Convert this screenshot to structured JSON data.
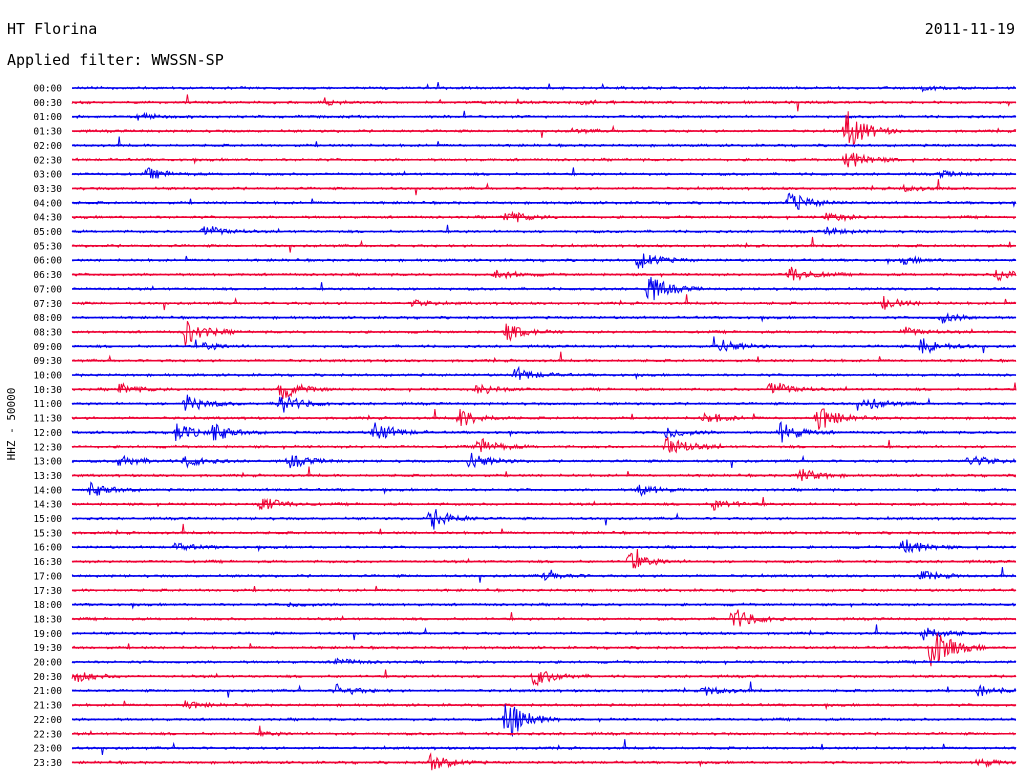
{
  "header": {
    "station": "HT Florina",
    "date": "2011-11-19",
    "filter": "Applied filter: WWSSN-SP"
  },
  "chart_data": {
    "type": "line",
    "title": "HT Florina",
    "ylabel": "HHZ - 50000",
    "row_labels": [
      "00:00",
      "00:30",
      "01:00",
      "01:30",
      "02:00",
      "02:30",
      "03:00",
      "03:30",
      "04:00",
      "04:30",
      "05:00",
      "05:30",
      "06:00",
      "06:30",
      "07:00",
      "07:30",
      "08:00",
      "08:30",
      "09:00",
      "09:30",
      "10:00",
      "10:30",
      "11:00",
      "11:30",
      "12:00",
      "12:30",
      "13:00",
      "13:30",
      "14:00",
      "14:30",
      "15:00",
      "15:30",
      "16:00",
      "16:30",
      "17:00",
      "17:30",
      "18:00",
      "18:30",
      "19:00",
      "19:30",
      "20:00",
      "20:30",
      "21:00",
      "21:30",
      "22:00",
      "22:30",
      "23:00",
      "23:30"
    ],
    "trace_colors": [
      "#0000ee",
      "#ee0033"
    ],
    "events": [
      {
        "row": 0,
        "t": 0.9,
        "amp": 0.4
      },
      {
        "row": 1,
        "t": 0.27,
        "amp": 0.3
      },
      {
        "row": 1,
        "t": 0.54,
        "amp": 0.3
      },
      {
        "row": 2,
        "t": 0.07,
        "amp": 0.5
      },
      {
        "row": 3,
        "t": 0.53,
        "amp": 0.3
      },
      {
        "row": 3,
        "t": 0.82,
        "amp": 3.5
      },
      {
        "row": 5,
        "t": 0.82,
        "amp": 1.8
      },
      {
        "row": 6,
        "t": 0.08,
        "amp": 0.9
      },
      {
        "row": 6,
        "t": 0.92,
        "amp": 0.5
      },
      {
        "row": 7,
        "t": 0.88,
        "amp": 0.5
      },
      {
        "row": 8,
        "t": 0.76,
        "amp": 1.8
      },
      {
        "row": 9,
        "t": 0.46,
        "amp": 1.2
      },
      {
        "row": 9,
        "t": 0.8,
        "amp": 0.8
      },
      {
        "row": 10,
        "t": 0.14,
        "amp": 1.1
      },
      {
        "row": 10,
        "t": 0.8,
        "amp": 0.6
      },
      {
        "row": 12,
        "t": 0.6,
        "amp": 1.5
      },
      {
        "row": 12,
        "t": 0.88,
        "amp": 0.6
      },
      {
        "row": 13,
        "t": 0.45,
        "amp": 0.8
      },
      {
        "row": 13,
        "t": 0.76,
        "amp": 1.5
      },
      {
        "row": 13,
        "t": 0.98,
        "amp": 1.2
      },
      {
        "row": 14,
        "t": 0.61,
        "amp": 2.5
      },
      {
        "row": 15,
        "t": 0.36,
        "amp": 0.5
      },
      {
        "row": 15,
        "t": 0.86,
        "amp": 1.0
      },
      {
        "row": 16,
        "t": 0.92,
        "amp": 0.9
      },
      {
        "row": 17,
        "t": 0.12,
        "amp": 2.2
      },
      {
        "row": 17,
        "t": 0.46,
        "amp": 1.5
      },
      {
        "row": 17,
        "t": 0.88,
        "amp": 0.8
      },
      {
        "row": 18,
        "t": 0.14,
        "amp": 0.6
      },
      {
        "row": 18,
        "t": 0.68,
        "amp": 1.6
      },
      {
        "row": 18,
        "t": 0.9,
        "amp": 1.5
      },
      {
        "row": 20,
        "t": 0.47,
        "amp": 1.2
      },
      {
        "row": 21,
        "t": 0.05,
        "amp": 0.9
      },
      {
        "row": 21,
        "t": 0.22,
        "amp": 1.8
      },
      {
        "row": 21,
        "t": 0.43,
        "amp": 1.0
      },
      {
        "row": 21,
        "t": 0.74,
        "amp": 1.5
      },
      {
        "row": 22,
        "t": 0.12,
        "amp": 1.5
      },
      {
        "row": 22,
        "t": 0.22,
        "amp": 1.8
      },
      {
        "row": 22,
        "t": 0.84,
        "amp": 1.2
      },
      {
        "row": 23,
        "t": 0.41,
        "amp": 1.6
      },
      {
        "row": 23,
        "t": 0.67,
        "amp": 1.0
      },
      {
        "row": 23,
        "t": 0.79,
        "amp": 2.2
      },
      {
        "row": 24,
        "t": 0.11,
        "amp": 1.5
      },
      {
        "row": 24,
        "t": 0.15,
        "amp": 1.4
      },
      {
        "row": 24,
        "t": 0.32,
        "amp": 1.8
      },
      {
        "row": 24,
        "t": 0.63,
        "amp": 1.0
      },
      {
        "row": 24,
        "t": 0.75,
        "amp": 1.8
      },
      {
        "row": 25,
        "t": 0.43,
        "amp": 1.5
      },
      {
        "row": 25,
        "t": 0.63,
        "amp": 2.0
      },
      {
        "row": 26,
        "t": 0.05,
        "amp": 1.0
      },
      {
        "row": 26,
        "t": 0.12,
        "amp": 1.0
      },
      {
        "row": 26,
        "t": 0.23,
        "amp": 1.2
      },
      {
        "row": 26,
        "t": 0.42,
        "amp": 1.5
      },
      {
        "row": 26,
        "t": 0.95,
        "amp": 1.1
      },
      {
        "row": 27,
        "t": 0.77,
        "amp": 1.3
      },
      {
        "row": 28,
        "t": 0.02,
        "amp": 1.2
      },
      {
        "row": 28,
        "t": 0.6,
        "amp": 1.0
      },
      {
        "row": 29,
        "t": 0.2,
        "amp": 1.4
      },
      {
        "row": 29,
        "t": 0.68,
        "amp": 0.9
      },
      {
        "row": 30,
        "t": 0.38,
        "amp": 2.0
      },
      {
        "row": 32,
        "t": 0.11,
        "amp": 0.6
      },
      {
        "row": 32,
        "t": 0.88,
        "amp": 1.6
      },
      {
        "row": 33,
        "t": 0.59,
        "amp": 1.6
      },
      {
        "row": 34,
        "t": 0.5,
        "amp": 0.8
      },
      {
        "row": 34,
        "t": 0.9,
        "amp": 0.8
      },
      {
        "row": 36,
        "t": 0.23,
        "amp": 0.3
      },
      {
        "row": 37,
        "t": 0.7,
        "amp": 2.0
      },
      {
        "row": 38,
        "t": 0.9,
        "amp": 1.5
      },
      {
        "row": 39,
        "t": 0.91,
        "amp": 4.0
      },
      {
        "row": 40,
        "t": 0.28,
        "amp": 0.6
      },
      {
        "row": 41,
        "t": 0.0,
        "amp": 1.2
      },
      {
        "row": 41,
        "t": 0.49,
        "amp": 1.6
      },
      {
        "row": 42,
        "t": 0.28,
        "amp": 1.0
      },
      {
        "row": 42,
        "t": 0.67,
        "amp": 0.8
      },
      {
        "row": 42,
        "t": 0.96,
        "amp": 1.0
      },
      {
        "row": 43,
        "t": 0.12,
        "amp": 0.6
      },
      {
        "row": 44,
        "t": 0.46,
        "amp": 3.8
      },
      {
        "row": 45,
        "t": 0.2,
        "amp": 0.3
      },
      {
        "row": 47,
        "t": 0.38,
        "amp": 1.5
      },
      {
        "row": 47,
        "t": 0.96,
        "amp": 0.7
      }
    ]
  }
}
